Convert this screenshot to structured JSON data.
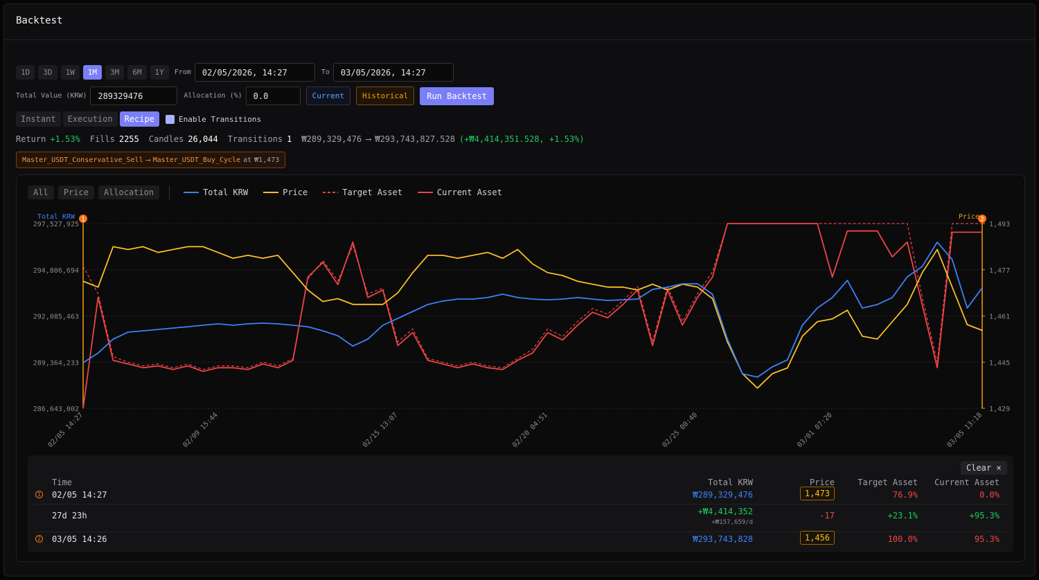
{
  "header": {
    "title": "Backtest"
  },
  "controls": {
    "ranges": [
      "1D",
      "3D",
      "1W",
      "1M",
      "3M",
      "6M",
      "1Y"
    ],
    "from_label": "From",
    "from_value": "02/05/2026, 14:27",
    "to_label": "To",
    "to_value": "03/05/2026, 14:27",
    "total_value_label": "Total Value (KRW)",
    "total_value": "289329476",
    "allocation_label": "Allocation (%)",
    "allocation": "0.0",
    "buttons": [
      "Current",
      "Historical",
      "Run Backtest"
    ],
    "modes": [
      "Instant",
      "Execution",
      "Recipe"
    ],
    "transitions_checkbox": "Enable Transitions"
  },
  "stats": {
    "return_label": "Return",
    "return": "+1.53%",
    "fills_label": "Fills",
    "fills": 2255,
    "candles_label": "Candles",
    "candles": "26,044",
    "transitions_label": "Transitions",
    "transitions": 1,
    "start": "₩289,329,476",
    "arrow": "⟶",
    "end": "₩293,743,827.528",
    "change": "(+₩4,414,351.528, +1.53%)"
  },
  "transition": {
    "from": "Master_USDT_Conservative_Sell",
    "arrow": "⟶",
    "to": "Master_USDT_Buy_Cycle",
    "at": "at",
    "price": "₩1,473"
  },
  "filters": [
    "All",
    "Price",
    "Allocation"
  ],
  "chart_data": {
    "type": "line",
    "y_label": "Total KRW",
    "y2_label": "Price",
    "markers": [
      "1",
      "2"
    ],
    "categories": [
      "02/05 14:27",
      null,
      null,
      null,
      null,
      null,
      null,
      null,
      null,
      "02/09 15:44",
      null,
      null,
      null,
      null,
      null,
      null,
      null,
      null,
      null,
      null,
      null,
      "02/15 13:07",
      null,
      null,
      null,
      null,
      null,
      null,
      null,
      null,
      null,
      "02/20 04:51",
      null,
      null,
      null,
      null,
      null,
      null,
      null,
      null,
      null,
      "02/25 00:40",
      null,
      null,
      null,
      null,
      null,
      null,
      null,
      null,
      "03/01 07:20",
      null,
      null,
      null,
      null,
      null,
      null,
      null,
      null,
      null,
      "03/05 13:18"
    ],
    "ylim": [
      286643002,
      297527925
    ],
    "yticks": [
      {
        "value": 286643002,
        "label": "286,643,002"
      },
      {
        "value": 289364233,
        "label": "289,364,233"
      },
      {
        "value": 292085463,
        "label": "292,085,463"
      },
      {
        "value": 294806694,
        "label": "294,806,694"
      },
      {
        "value": 297527925,
        "label": "297,527,925"
      }
    ],
    "y2lim": [
      1429,
      1493
    ],
    "y2ticks": [
      {
        "value": 1429,
        "label": "1,429"
      },
      {
        "value": 1445,
        "label": "1,445"
      },
      {
        "value": 1461,
        "label": "1,461"
      },
      {
        "value": 1477,
        "label": "1,477"
      },
      {
        "value": 1493,
        "label": "1,493"
      }
    ],
    "y3lim": [
      0,
      100
    ],
    "grid": true,
    "series": [
      {
        "name": "Total KRW",
        "color": "#3b82f6",
        "line_style": "solid",
        "values": [
          289329476,
          289900000,
          290720000,
          291130000,
          291210000,
          291290000,
          291370000,
          291450000,
          291540000,
          291620000,
          291540000,
          291620000,
          291660000,
          291620000,
          291540000,
          291450000,
          291210000,
          290920000,
          290310000,
          290720000,
          291540000,
          291940000,
          292350000,
          292760000,
          292960000,
          293080000,
          293080000,
          293170000,
          293370000,
          293170000,
          293080000,
          293040000,
          293080000,
          293170000,
          293080000,
          293000000,
          293040000,
          293080000,
          293650000,
          293780000,
          293980000,
          293980000,
          293370000,
          290720000,
          288680000,
          288480000,
          289090000,
          289500000,
          291540000,
          292550000,
          293170000,
          294180000,
          292550000,
          292760000,
          293170000,
          294390000,
          295000000,
          296430000,
          295410000,
          292550000,
          293743828
        ]
      },
      {
        "name": "Price",
        "color": "#fbbf24",
        "axis": "y2",
        "line_style": "solid",
        "values": [
          1473,
          1471,
          1485,
          1484,
          1485,
          1483,
          1484,
          1485,
          1485,
          1483,
          1481,
          1482,
          1481,
          1482,
          1476,
          1470,
          1466,
          1467,
          1465,
          1465,
          1465,
          1469,
          1476,
          1482,
          1482,
          1481,
          1482,
          1483,
          1481,
          1484,
          1479,
          1476,
          1475,
          1473,
          1472,
          1471,
          1471,
          1470,
          1472,
          1470,
          1472,
          1471,
          1467,
          1452,
          1441,
          1436,
          1441,
          1443,
          1454,
          1459,
          1460,
          1463,
          1454,
          1453,
          1459,
          1465,
          1476,
          1484,
          1471,
          1458,
          1456
        ]
      },
      {
        "name": "Target Asset",
        "color": "#ef4444",
        "axis": "y3",
        "line_style": "dashed",
        "values": [
          76.9,
          62,
          28,
          25,
          23,
          24,
          22,
          24,
          21,
          23,
          23,
          22,
          25,
          23,
          27,
          70,
          80,
          69,
          88,
          62,
          65,
          36,
          43,
          27,
          25,
          23,
          25,
          23,
          22,
          27,
          32,
          43,
          39,
          47,
          54,
          51,
          58,
          66,
          36,
          66,
          47,
          62,
          74,
          100,
          100,
          100,
          100,
          100,
          100,
          100,
          100,
          100,
          100,
          100,
          100,
          100,
          60,
          25,
          100,
          100,
          100
        ]
      },
      {
        "name": "Current Asset",
        "color": "#ef4444",
        "axis": "y3",
        "line_style": "solid",
        "values": [
          0,
          60,
          26,
          24,
          22,
          23,
          21,
          23,
          20,
          22,
          22,
          21,
          24,
          22,
          26,
          71,
          79,
          67,
          90,
          60,
          64,
          34,
          41,
          26,
          24,
          22,
          24,
          22,
          21,
          26,
          30,
          41,
          37,
          45,
          52,
          49,
          56,
          64,
          34,
          64,
          45,
          60,
          71,
          100,
          100,
          100,
          100,
          100,
          100,
          100,
          71,
          96,
          96,
          96,
          82,
          90,
          56,
          22,
          95.3,
          95.3,
          95.3
        ]
      }
    ]
  },
  "table": {
    "clear": "Clear",
    "close": "×",
    "headers": [
      "Time",
      "Total KRW",
      "Price",
      "Target Asset",
      "Current Asset"
    ],
    "rows": [
      {
        "marker": "1",
        "time": "02/05 14:27",
        "total": "₩289,329,476",
        "price": "1,473",
        "target": "76.9%",
        "current": "0.0%"
      },
      {
        "time": "27d 23h",
        "total": "+₩4,414,352",
        "total_sub": "+₩157,659/d",
        "price": "-17",
        "target": "+23.1%",
        "current": "+95.3%"
      },
      {
        "marker": "2",
        "time": "03/05 14:26",
        "total": "₩293,743,828",
        "price": "1,456",
        "target": "100.0%",
        "current": "95.3%"
      }
    ]
  }
}
